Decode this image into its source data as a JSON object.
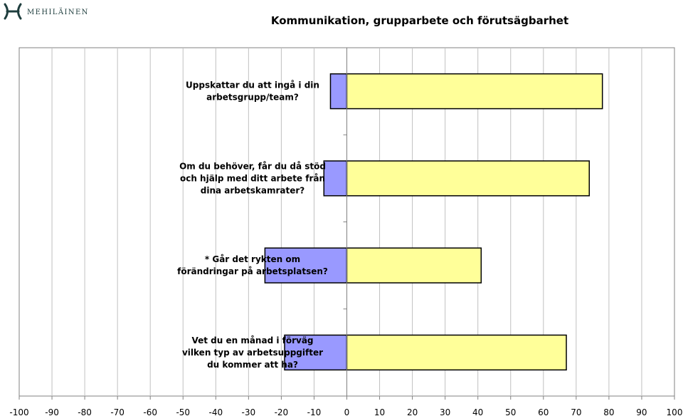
{
  "brand": {
    "name": "MEHILÄINEN",
    "logo_color": "#1f3e3e"
  },
  "chart_data": {
    "type": "bar",
    "orientation": "horizontal",
    "stacked_diverging": true,
    "title": "Kommunikation, grupparbete och förutsägbarhet",
    "categories": [
      [
        "Uppskattar du att ingå i din",
        "arbetsgrupp/team?"
      ],
      [
        "Om du behöver, får du då stöd",
        "och hjälp med ditt arbete från",
        "dina arbetskamrater?"
      ],
      [
        "* Går det rykten om",
        "förändringar på arbetsplatsen?"
      ],
      [
        "Vet du en månad i förväg",
        "vilken typ av arbetsuppgifter",
        "du kommer att ha?"
      ]
    ],
    "series": [
      {
        "color": "#9999ff",
        "values": [
          -5,
          -7,
          -25,
          -19
        ]
      },
      {
        "color": "#ffff99",
        "values": [
          78,
          74,
          41,
          67
        ]
      }
    ],
    "xlim": [
      -100,
      100
    ],
    "xticks": [
      -100,
      -90,
      -80,
      -70,
      -60,
      -50,
      -40,
      -30,
      -20,
      -10,
      0,
      10,
      20,
      30,
      40,
      50,
      60,
      70,
      80,
      90,
      100
    ],
    "grid": true,
    "legend": "none",
    "gridline_color": "#c0c0c0"
  }
}
